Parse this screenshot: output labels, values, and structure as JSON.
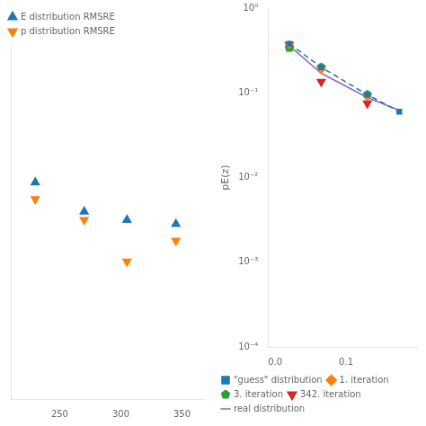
{
  "chart_data": [
    {
      "type": "scatter",
      "tick_labels": "x",
      "grid": false,
      "legend": "upper left",
      "xlim": [
        210,
        368
      ],
      "xticks": [
        250,
        300,
        350
      ],
      "ylim": [
        0.0,
        0.00085
      ],
      "series": [
        {
          "name": "E distribution RMSRE",
          "type": "scatter",
          "marker": "triangle_up",
          "color": "#1f77b4",
          "x": [
            230,
            270,
            305,
            345
          ],
          "values": [
            0.00052,
            0.00045,
            0.00043,
            0.00042
          ]
        },
        {
          "name": "p distribution RMSRE",
          "type": "scatter",
          "marker": "triangle_down",
          "color": "#ff7f0e",
          "x": [
            230,
            270,
            305,
            345
          ],
          "values": [
            0.00048,
            0.00043,
            0.00033,
            0.00038
          ]
        }
      ]
    },
    {
      "type": "scatter",
      "log": "y",
      "grid": false,
      "legend": "lower left",
      "ylabel": "pE(z)",
      "xlim": [
        -0.01,
        0.2
      ],
      "xticks": [
        {
          "value": 0.0,
          "label": "0.0"
        },
        0.1
      ],
      "ylim": [
        0.0001,
        1.0
      ],
      "yticks": [
        {
          "value": 0.0001,
          "label": "10⁻⁴"
        },
        {
          "value": 0.001,
          "label": "10⁻³"
        },
        {
          "value": 0.01,
          "label": "10⁻²"
        },
        {
          "value": 0.1,
          "label": "10⁻¹"
        },
        {
          "value": 1.0,
          "label": "10⁰"
        }
      ],
      "series": [
        {
          "name": "\"guess\" distribution",
          "type": "line",
          "line_style": "dashed",
          "marker": "square",
          "color": "#1f77b4",
          "x": [
            0.02,
            0.065,
            0.13,
            0.175
          ],
          "values": [
            0.38,
            0.2,
            0.095,
            0.06
          ]
        },
        {
          "name": "1. iteration",
          "type": "scatter",
          "marker": "diamond",
          "color": "#ff7f0e",
          "x": [
            0.02,
            0.065,
            0.13
          ],
          "values": [
            0.37,
            0.19,
            0.09
          ]
        },
        {
          "name": "3. iteration",
          "type": "scatter",
          "marker": "pentagon",
          "color": "#2ca02c",
          "x": [
            0.02,
            0.065,
            0.13
          ],
          "values": [
            0.34,
            0.2,
            0.095
          ]
        },
        {
          "name": "342. iteration",
          "type": "scatter",
          "marker": "triangle_down",
          "color": "#d62728",
          "x": [
            0.02,
            0.065,
            0.13
          ],
          "values": [
            0.37,
            0.135,
            0.075
          ]
        },
        {
          "name": "real distribution",
          "type": "line",
          "line_style": "solid",
          "color": "#9467bd",
          "x": [
            0.02,
            0.065,
            0.13,
            0.175
          ],
          "values": [
            0.36,
            0.17,
            0.088,
            0.062
          ]
        }
      ]
    }
  ]
}
